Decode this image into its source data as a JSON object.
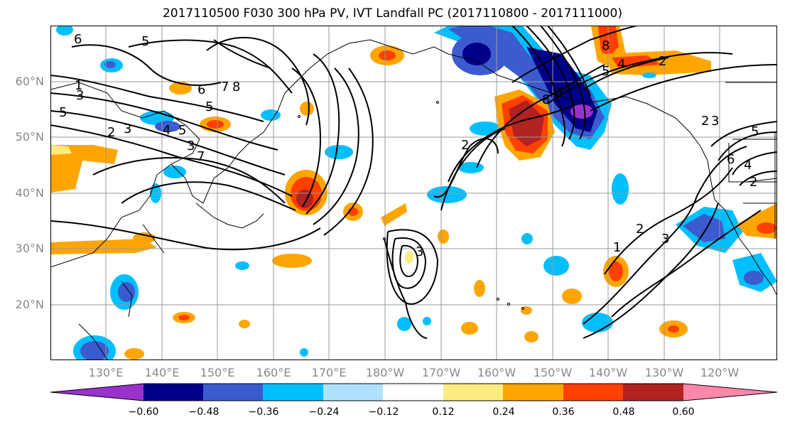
{
  "title": "2017110500 F030 300 hPa PV, IVT Landfall PC (2017110800 - 2017111000)",
  "lat_labels": [
    "60°N",
    "50°N",
    "40°N",
    "30°N",
    "20°N"
  ],
  "lon_labels": [
    "130°E",
    "140°E",
    "150°E",
    "160°E",
    "170°E",
    "180°W",
    "170°W",
    "160°W",
    "150°W",
    "140°W",
    "130°W",
    "120°W"
  ],
  "colorbar": {
    "colors": [
      "#9932cc",
      "#00008b",
      "#3b5bcf",
      "#00bfff",
      "#b0e2ff",
      "#ffffff",
      "#ffec80",
      "#ffa500",
      "#ff4000",
      "#b22222",
      "#ff88aa"
    ],
    "tick_labels": [
      "−0.60",
      "−0.48",
      "−0.36",
      "−0.24",
      "−0.12",
      "0.12",
      "0.24",
      "0.36",
      "0.48",
      "0.60"
    ]
  },
  "contour_labels": [
    "6",
    "5",
    "1",
    "3",
    "5",
    "3",
    "2",
    "6",
    "7",
    "8",
    "5",
    "4",
    "5",
    "3",
    "7",
    "2",
    "8",
    "8",
    "2",
    "3",
    "3",
    "6",
    "4",
    "2",
    "5",
    "2",
    "3",
    "1",
    "2",
    "3",
    "5",
    "4"
  ],
  "colors": {
    "axis_label": "#888888",
    "grid": "#999999",
    "coast": "#000000"
  }
}
